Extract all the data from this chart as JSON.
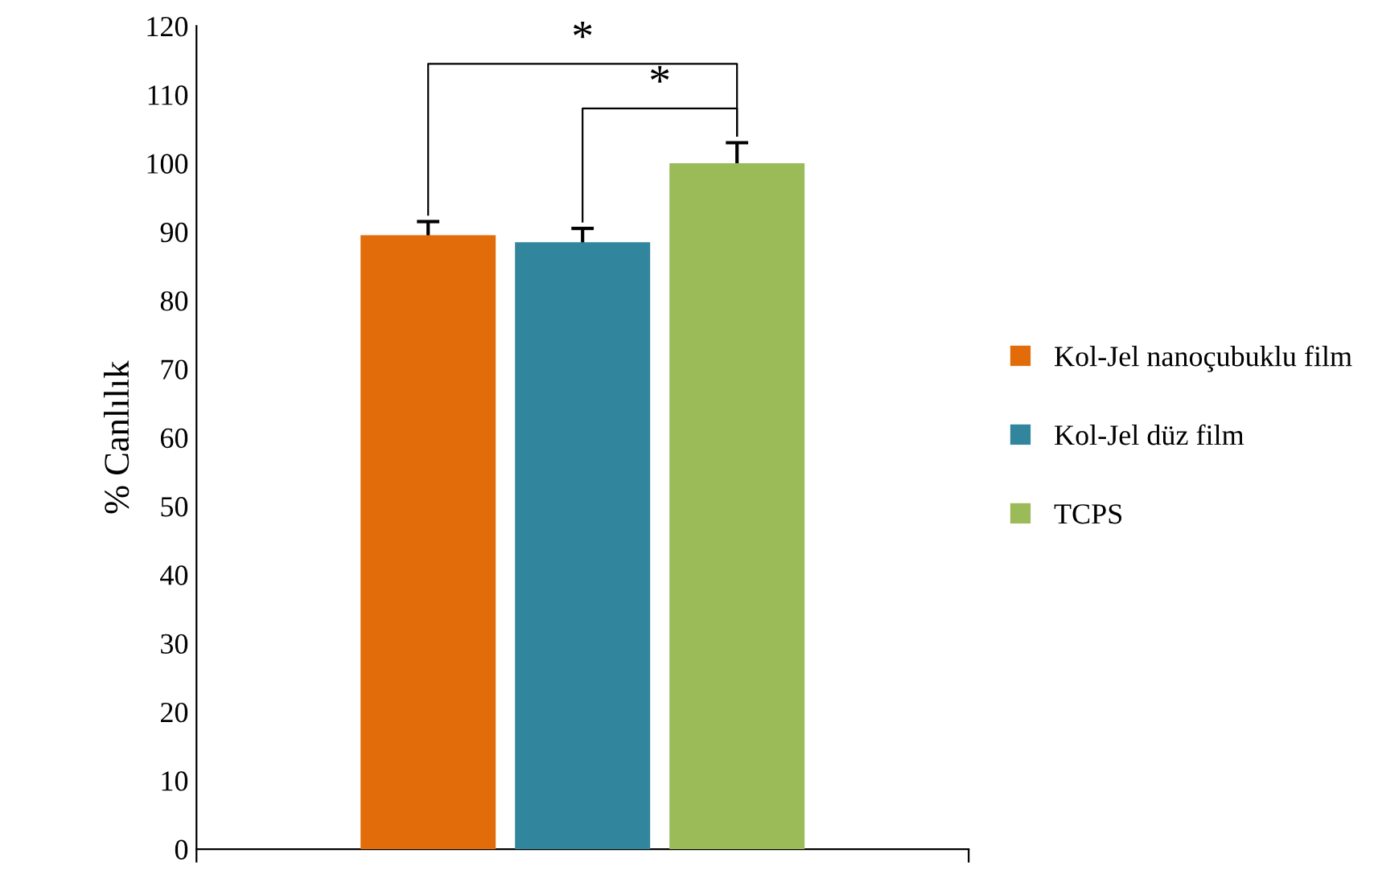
{
  "chart_data": {
    "type": "bar",
    "ylabel": "% Canlılık",
    "categories": [
      null
    ],
    "series": [
      {
        "name": "Kol-Jel nanoçubuklu film",
        "color": "#e36c0a",
        "values": [
          89.5
        ],
        "errors": [
          2
        ]
      },
      {
        "name": "Kol-Jel düz film",
        "color": "#31859c",
        "values": [
          88.5
        ],
        "errors": [
          2
        ]
      },
      {
        "name": "TCPS",
        "color": "#9bbb59",
        "values": [
          100
        ],
        "errors": [
          3
        ]
      }
    ],
    "ylim": [
      0,
      120
    ],
    "yticks": [
      0,
      10,
      20,
      30,
      40,
      50,
      60,
      70,
      80,
      90,
      100,
      110,
      120
    ],
    "annotations": [
      "*",
      "*"
    ],
    "legend": "right",
    "grid": false
  }
}
